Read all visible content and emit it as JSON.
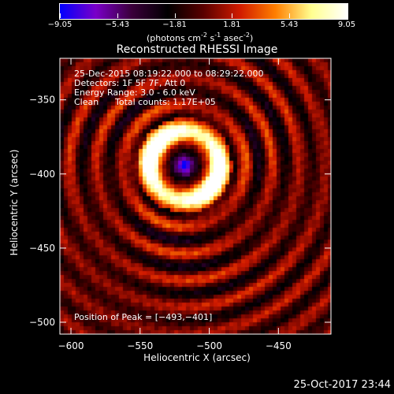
{
  "colorbar": {
    "min": -9.05,
    "max": 9.05,
    "tick_labels": [
      "-9.05",
      "-5.43",
      "-1.81",
      "1.81",
      "5.43",
      "9.05"
    ],
    "units_parts": [
      "(photons cm",
      "-2",
      " s",
      "-1",
      " asec",
      "-2",
      ")"
    ],
    "colors": [
      "#0000ff",
      "#7a00c8",
      "#3a003a",
      "#000000",
      "#5a0000",
      "#d01a00",
      "#ff7f00",
      "#ffff90",
      "#ffffff"
    ]
  },
  "chart_data": {
    "type": "heatmap",
    "title": "Reconstructed RHESSI Image",
    "xlabel": "Heliocentric X (arcsec)",
    "ylabel": "Heliocentric Y (arcsec)",
    "xlim": [
      -608,
      -412
    ],
    "ylim": [
      -508,
      -322
    ],
    "x_ticks": [
      -600,
      -550,
      -500,
      -450
    ],
    "y_ticks": [
      -350,
      -400,
      -450,
      -500
    ],
    "x_tick_labels": [
      "−600",
      "−550",
      "−500",
      "−450"
    ],
    "y_tick_labels": [
      "−350",
      "−400",
      "−450",
      "−500"
    ],
    "peak": [
      -493,
      -401
    ],
    "annotations": {
      "time_range": "25-Dec-2015 08:19:22.000 to 08:29:22.000",
      "detectors": "Detectors: 1F 5F 7F, Att 0",
      "energy": "Energy Range: 3.0 - 6.0 keV",
      "clean_label": "Clean",
      "total_counts": "Total counts: 1.17E+05",
      "peak_label": "Position of Peak = [−493,−401]"
    }
  },
  "footer": {
    "timestamp": "25-Oct-2017 23:44"
  }
}
